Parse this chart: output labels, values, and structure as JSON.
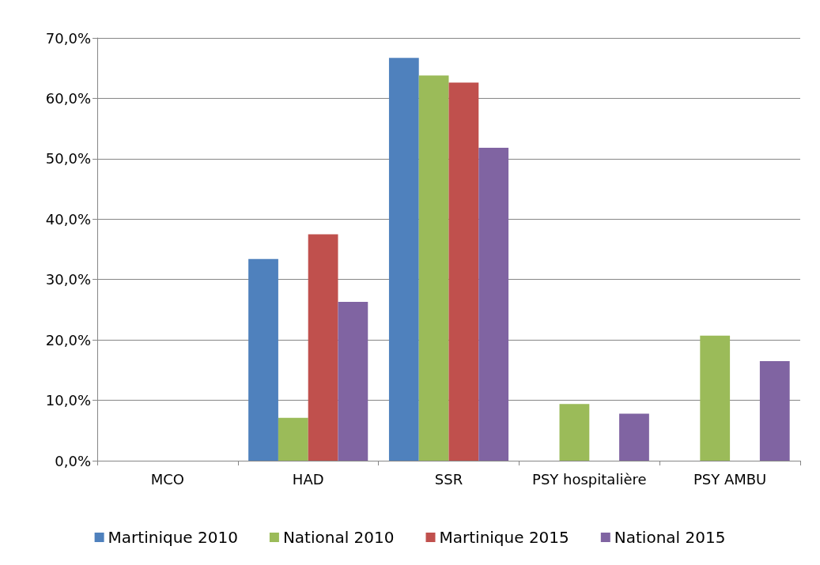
{
  "chart_data": {
    "type": "bar",
    "categories": [
      "MCO",
      "HAD",
      "SSR",
      "PSY hospitalière",
      "PSY AMBU"
    ],
    "series": [
      {
        "name": "Martinique 2010",
        "color": "#4f81bd",
        "values": [
          0,
          33.4,
          66.7,
          0,
          0
        ]
      },
      {
        "name": "National 2010",
        "color": "#9bbb59",
        "values": [
          0,
          7.1,
          63.8,
          9.4,
          20.7
        ]
      },
      {
        "name": "Martinique 2015",
        "color": "#c0504d",
        "values": [
          0,
          37.5,
          62.6,
          0,
          0
        ]
      },
      {
        "name": "National 2015",
        "color": "#8064a2",
        "values": [
          0,
          26.3,
          51.8,
          7.8,
          16.5
        ]
      }
    ],
    "ylim": [
      0,
      70
    ],
    "yticks": [
      {
        "value": 0,
        "label": "0,0%"
      },
      {
        "value": 10,
        "label": "10,0%"
      },
      {
        "value": 20,
        "label": "20,0%"
      },
      {
        "value": 30,
        "label": "30,0%"
      },
      {
        "value": 40,
        "label": "40,0%"
      },
      {
        "value": 50,
        "label": "50,0%"
      },
      {
        "value": 60,
        "label": "60,0%"
      },
      {
        "value": 70,
        "label": "70,0%"
      }
    ],
    "grid": "y",
    "legend": "bottom"
  }
}
